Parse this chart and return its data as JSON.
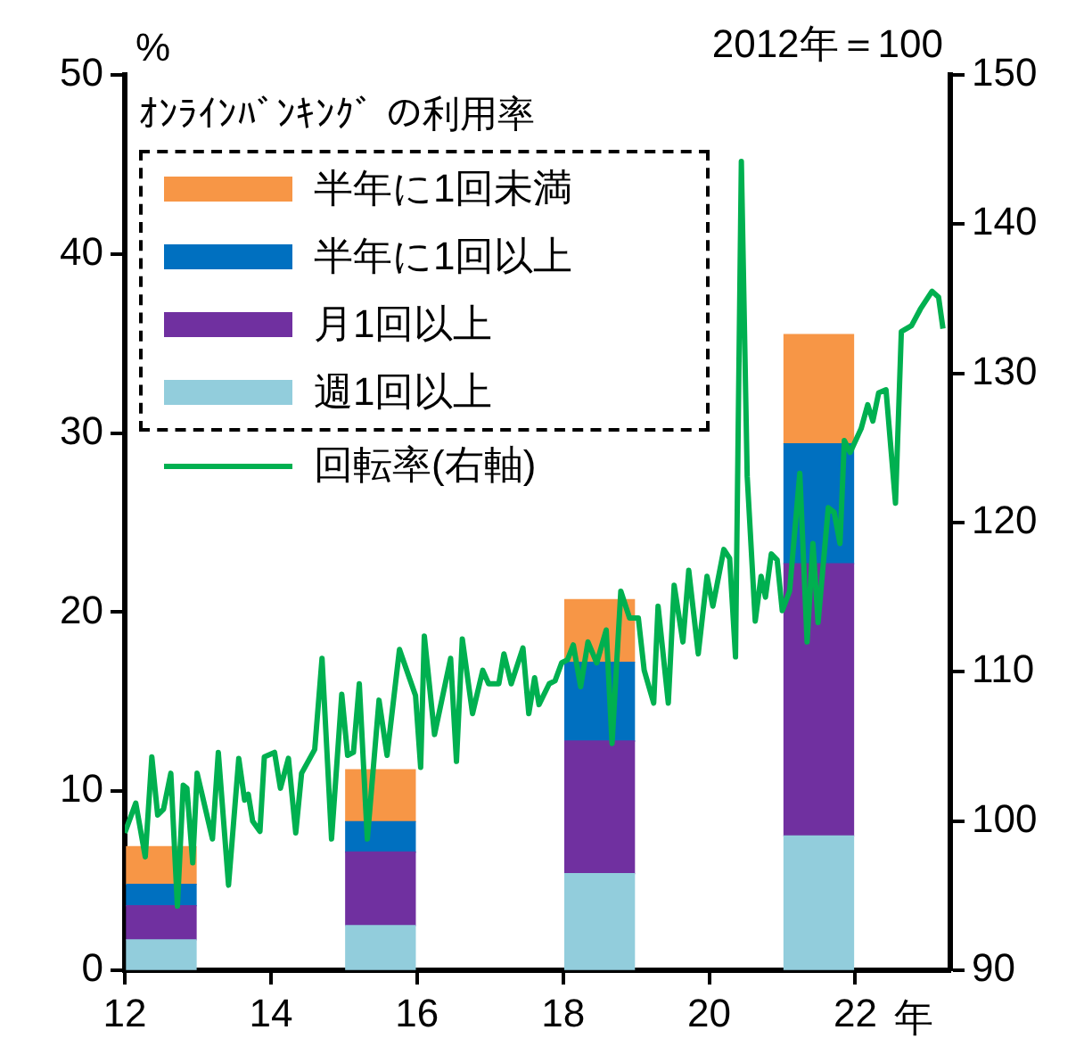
{
  "chart_data": {
    "type": "bar",
    "legend_title": "ｵﾝﾗｲﾝﾊﾞﾝｷﾝｸﾞ の利用率",
    "ylabel": "%",
    "y2label": "2012年＝100",
    "xlabel": "年",
    "stacked": true,
    "legend": "top left",
    "grid": false,
    "xlim": [
      12,
      23.3
    ],
    "xticks": [
      12,
      14,
      16,
      18,
      20,
      22
    ],
    "ylim": [
      0,
      50
    ],
    "yticks": [
      0,
      10,
      20,
      30,
      40,
      50
    ],
    "y2lim": [
      90,
      150
    ],
    "y2ticks": [
      90,
      100,
      110,
      120,
      130,
      140,
      150
    ],
    "series": [
      {
        "name": "週1回以上",
        "color": "#92cddc",
        "x": [
          12.5,
          15.5,
          18.5,
          21.5
        ],
        "values": [
          1.7,
          2.5,
          5.4,
          7.5
        ]
      },
      {
        "name": "月1回以上",
        "color": "#7030a0",
        "x": [
          12.5,
          15.5,
          18.5,
          21.5
        ],
        "values": [
          1.9,
          4.1,
          7.4,
          15.2
        ]
      },
      {
        "name": "半年に1回以上",
        "color": "#0070c0",
        "x": [
          12.5,
          15.5,
          18.5,
          21.5
        ],
        "values": [
          1.2,
          1.7,
          4.4,
          6.7
        ]
      },
      {
        "name": "半年に1回未満",
        "color": "#f79646",
        "x": [
          12.5,
          15.5,
          18.5,
          21.5
        ],
        "values": [
          2.1,
          2.9,
          3.5,
          6.1
        ]
      },
      {
        "name": "回転率(右軸)",
        "type": "line",
        "axis": "y2",
        "color": "#00b050",
        "marker": "none",
        "line_style": "solid",
        "x": [
          12.0,
          12.15,
          12.28,
          12.37,
          12.45,
          12.53,
          12.63,
          12.72,
          12.8,
          12.85,
          12.93,
          12.99,
          13.2,
          13.28,
          13.42,
          13.56,
          13.64,
          13.69,
          13.75,
          13.85,
          13.91,
          14.05,
          14.13,
          14.24,
          14.34,
          14.42,
          14.6,
          14.7,
          14.83,
          14.97,
          15.05,
          15.13,
          15.21,
          15.32,
          15.48,
          15.59,
          15.76,
          15.98,
          16.05,
          16.1,
          16.24,
          16.46,
          16.54,
          16.62,
          16.76,
          16.9,
          16.98,
          17.12,
          17.19,
          17.29,
          17.45,
          17.53,
          17.61,
          17.67,
          17.81,
          17.89,
          17.98,
          18.06,
          18.14,
          18.24,
          18.34,
          18.46,
          18.59,
          18.67,
          18.79,
          18.91,
          19.03,
          19.11,
          19.24,
          19.3,
          19.44,
          19.52,
          19.64,
          19.72,
          19.85,
          19.97,
          20.05,
          20.2,
          20.28,
          20.36,
          20.44,
          20.52,
          20.63,
          20.71,
          20.77,
          20.85,
          20.93,
          21.0,
          21.1,
          21.24,
          21.34,
          21.42,
          21.49,
          21.63,
          21.71,
          21.79,
          21.85,
          21.93,
          22.08,
          22.17,
          22.24,
          22.32,
          22.42,
          22.55,
          22.63,
          22.77,
          22.89,
          23.05,
          23.14,
          23.2
        ],
        "values": [
          99.2,
          101.2,
          97.6,
          104.3,
          100.4,
          100.8,
          103.2,
          94.3,
          102.4,
          102.2,
          97.2,
          103.2,
          98.8,
          104.6,
          95.7,
          104.2,
          101.4,
          101.8,
          100.0,
          99.3,
          104.3,
          104.6,
          102.2,
          104.2,
          99.2,
          103.2,
          104.8,
          110.9,
          98.8,
          108.5,
          104.4,
          104.6,
          109.2,
          98.8,
          108.1,
          104.4,
          111.5,
          108.4,
          103.6,
          112.4,
          105.8,
          110.9,
          104.0,
          112.2,
          107.2,
          110.1,
          109.2,
          109.2,
          111.2,
          109.2,
          111.6,
          107.2,
          109.6,
          107.8,
          109.2,
          109.4,
          110.6,
          110.8,
          111.8,
          109.0,
          112.0,
          110.6,
          112.8,
          105.2,
          115.4,
          113.6,
          113.6,
          110.1,
          107.9,
          114.4,
          107.9,
          115.8,
          112.0,
          116.8,
          111.2,
          116.4,
          114.4,
          118.2,
          117.6,
          111.0,
          144.2,
          123.1,
          113.4,
          116.4,
          115.0,
          117.9,
          117.5,
          114.1,
          115.4,
          123.3,
          112.0,
          118.6,
          113.3,
          121.0,
          120.7,
          118.6,
          125.5,
          124.7,
          126.3,
          127.9,
          126.8,
          128.7,
          128.9,
          121.3,
          132.8,
          133.2,
          134.3,
          135.5,
          135.1,
          133.0
        ]
      }
    ]
  }
}
